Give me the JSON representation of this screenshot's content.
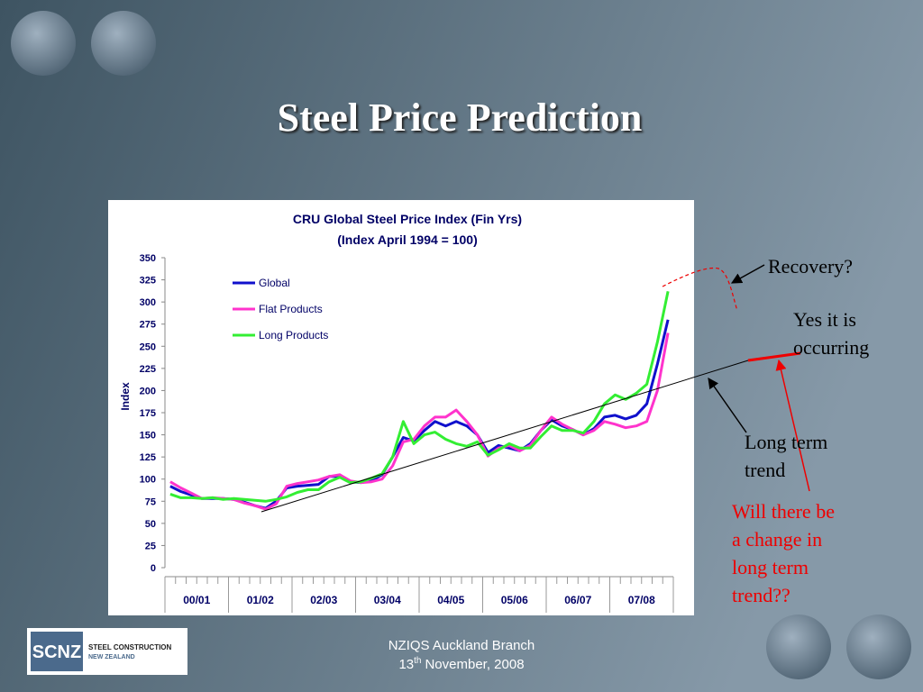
{
  "slide": {
    "title": "Steel Price Prediction",
    "footer": {
      "line1": "NZIQS Auckland Branch",
      "day": "13",
      "suffix": "th",
      "rest": "November, 2008"
    },
    "logo": {
      "mark": "SCNZ",
      "line1": "STEEL CONSTRUCTION",
      "line2": "NEW ZEALAND"
    }
  },
  "chart_data": {
    "type": "line",
    "title": "CRU Global Steel Price Index (Fin Yrs)",
    "subtitle": "(Index April 1994 = 100)",
    "ylabel": "Index",
    "ylim": [
      0,
      350
    ],
    "yticks": [
      0,
      25,
      50,
      75,
      100,
      125,
      150,
      175,
      200,
      225,
      250,
      275,
      300,
      325,
      350
    ],
    "legend": "top-left",
    "categories": [
      "00/01",
      null,
      null,
      null,
      null,
      null,
      "01/02",
      null,
      null,
      null,
      null,
      null,
      "02/03",
      null,
      null,
      null,
      null,
      null,
      "03/04",
      null,
      null,
      null,
      null,
      null,
      "04/05",
      null,
      null,
      null,
      null,
      null,
      "05/06",
      null,
      null,
      null,
      null,
      null,
      "06/07",
      null,
      null,
      null,
      null,
      null,
      "07/08",
      null,
      null,
      null,
      null,
      null
    ],
    "series": [
      {
        "name": "Global",
        "color": "#1010cc",
        "values": [
          92,
          86,
          82,
          78,
          78,
          78,
          77,
          74,
          70,
          67,
          75,
          90,
          92,
          93,
          94,
          103,
          103,
          97,
          96,
          98,
          105,
          125,
          147,
          143,
          155,
          165,
          160,
          165,
          160,
          150,
          130,
          138,
          135,
          132,
          140,
          155,
          167,
          160,
          156,
          150,
          157,
          170,
          172,
          168,
          172,
          185,
          230,
          280
        ]
      },
      {
        "name": "Flat Products",
        "color": "#ff33cc",
        "values": [
          97,
          90,
          84,
          78,
          79,
          78,
          77,
          73,
          70,
          66,
          72,
          92,
          95,
          97,
          99,
          103,
          105,
          98,
          96,
          97,
          100,
          115,
          142,
          145,
          160,
          170,
          170,
          178,
          165,
          150,
          126,
          135,
          138,
          132,
          138,
          155,
          170,
          162,
          156,
          150,
          155,
          165,
          162,
          158,
          160,
          165,
          200,
          265
        ]
      },
      {
        "name": "Long Products",
        "color": "#33ee33",
        "values": [
          83,
          79,
          79,
          78,
          79,
          77,
          78,
          77,
          76,
          75,
          77,
          80,
          85,
          88,
          88,
          97,
          102,
          96,
          97,
          101,
          106,
          125,
          165,
          140,
          150,
          153,
          145,
          140,
          137,
          142,
          127,
          133,
          140,
          135,
          135,
          148,
          160,
          155,
          155,
          152,
          165,
          185,
          195,
          190,
          197,
          207,
          255,
          312
        ]
      }
    ],
    "annotations": [
      {
        "lines": [
          "Recovery?"
        ],
        "color": "#000000"
      },
      {
        "lines": [
          "Yes it is",
          "occurring"
        ],
        "color": "#000000"
      },
      {
        "lines": [
          "Long term",
          "trend"
        ],
        "color": "#000000"
      },
      {
        "lines": [
          "Will there be",
          "a change in",
          "long term",
          "trend??"
        ],
        "color": "#ee0000"
      }
    ]
  }
}
